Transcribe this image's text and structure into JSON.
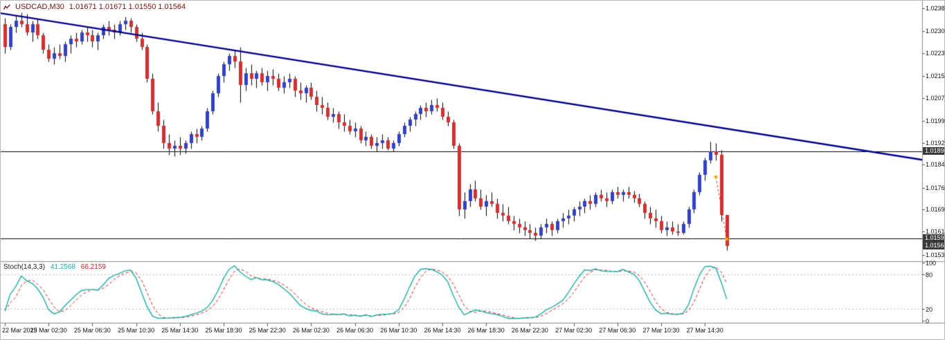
{
  "header": {
    "symbol": "USDCAD,M30",
    "ohlc": "1.01671 1.01671 1.01550 1.01564"
  },
  "indicator_label": {
    "name": "Stoch(14,3,3)",
    "k_value": "41.2568",
    "d_value": "66.2159"
  },
  "colors": {
    "background": "#ffffff",
    "bull": "#3342c2",
    "bear": "#d03232",
    "wick": "#000000",
    "trendline": "#00008b",
    "hline": "#000000",
    "separator": "#8a8a8a",
    "stoch_k": "#1fada6",
    "stoch_d": "#cc2222",
    "stoch_levels": "#a6c8a6",
    "axis_text": "#111111",
    "header_text": "#7b1010",
    "box_bg": "#3a3a3a",
    "box_text": "#ffffff",
    "trade_line": "#cc3322",
    "trade_marker": "#e6a817"
  },
  "axes": {
    "price_labels": [
      "1.02385",
      "1.02305",
      "1.02230",
      "1.02150",
      "1.02075",
      "1.01995",
      "1.01920",
      "1.01845",
      "1.01765",
      "1.01690",
      "1.01615",
      "1.01535"
    ],
    "stoch_labels": [
      "100",
      "80",
      "20",
      "0"
    ],
    "time_labels": [
      "22 Mar 2013",
      "25 Mar 02:30",
      "25 Mar 06:30",
      "25 Mar 10:30",
      "25 Mar 14:30",
      "25 Mar 18:30",
      "25 Mar 22:30",
      "26 Mar 02:30",
      "26 Mar 06:30",
      "26 Mar 10:30",
      "26 Mar 14:30",
      "26 Mar 18:30",
      "26 Mar 22:30",
      "27 Mar 02:30",
      "27 Mar 06:30",
      "27 Mar 10:30",
      "27 Mar 14:30"
    ]
  },
  "price_boxes": [
    {
      "name": "resistance-line-price",
      "text": "1.01890",
      "price": 1.0189
    },
    {
      "name": "support-line-price",
      "text": "1.01590",
      "price": 1.0159
    },
    {
      "name": "current-price",
      "text": "1.01564",
      "price": 1.01564
    }
  ],
  "chart_data": {
    "type": "candlestick",
    "symbol": "USDCAD",
    "timeframe": "M30",
    "title": "USDCAD,M30",
    "price_range": {
      "top": 1.0241,
      "bottom": 1.01515
    },
    "bars_per_time_label": 8,
    "current_bar": {
      "open": 1.01671,
      "high": 1.01671,
      "low": 1.0155,
      "close": 1.01564
    },
    "horizontal_lines": [
      {
        "price": 1.0189
      },
      {
        "price": 1.0159
      }
    ],
    "annotations": {
      "trendline": {
        "from": {
          "x_frac": 0.0,
          "price": 1.02367
        },
        "to": {
          "x_frac": 1.0,
          "price": 1.01862
        }
      },
      "trade_marker": {
        "from": {
          "bar": 130,
          "price": 1.01803
        },
        "to": {
          "bar": 132,
          "price": 1.01589
        }
      }
    },
    "stochastic": {
      "period": 14,
      "k_smooth": 3,
      "d_smooth": 3,
      "levels": [
        80,
        20
      ],
      "range": [
        0,
        100
      ],
      "last_k": 41.2568,
      "last_d": 66.2159
    },
    "candles_ohlc": [
      [
        1.0233,
        1.0235,
        1.0223,
        1.0225
      ],
      [
        1.0225,
        1.0233,
        1.0224,
        1.0232
      ],
      [
        1.0232,
        1.0236,
        1.023,
        1.0234
      ],
      [
        1.0234,
        1.0237,
        1.0232,
        1.0233
      ],
      [
        1.0233,
        1.02365,
        1.0229,
        1.023
      ],
      [
        1.023,
        1.0234,
        1.0227,
        1.0233
      ],
      [
        1.0233,
        1.02345,
        1.0228,
        1.0229
      ],
      [
        1.0229,
        1.023,
        1.0223,
        1.0224
      ],
      [
        1.0224,
        1.0226,
        1.022,
        1.0221
      ],
      [
        1.0221,
        1.0225,
        1.0219,
        1.0223
      ],
      [
        1.0223,
        1.0226,
        1.0221,
        1.0222
      ],
      [
        1.0222,
        1.0227,
        1.022,
        1.0226
      ],
      [
        1.0226,
        1.0229,
        1.0223,
        1.0228
      ],
      [
        1.0228,
        1.023,
        1.0225,
        1.0227
      ],
      [
        1.0227,
        1.0231,
        1.0226,
        1.023
      ],
      [
        1.023,
        1.0232,
        1.0227,
        1.0229
      ],
      [
        1.0229,
        1.0231,
        1.0225,
        1.0227
      ],
      [
        1.0227,
        1.023,
        1.0224,
        1.0229
      ],
      [
        1.0229,
        1.0233,
        1.0228,
        1.0232
      ],
      [
        1.0232,
        1.0234,
        1.0229,
        1.0231
      ],
      [
        1.0231,
        1.0233,
        1.0228,
        1.023
      ],
      [
        1.023,
        1.0234,
        1.0229,
        1.0233
      ],
      [
        1.0233,
        1.02355,
        1.0231,
        1.0234
      ],
      [
        1.0234,
        1.0235,
        1.023,
        1.0232
      ],
      [
        1.0232,
        1.0233,
        1.0227,
        1.0228
      ],
      [
        1.0228,
        1.023,
        1.0224,
        1.0225
      ],
      [
        1.0225,
        1.0226,
        1.0213,
        1.0214
      ],
      [
        1.0214,
        1.0216,
        1.0202,
        1.0203
      ],
      [
        1.0203,
        1.0206,
        1.0196,
        1.0198
      ],
      [
        1.0198,
        1.02,
        1.019,
        1.0192
      ],
      [
        1.0192,
        1.0195,
        1.0188,
        1.019
      ],
      [
        1.019,
        1.0193,
        1.01875,
        1.0191
      ],
      [
        1.0191,
        1.0194,
        1.0188,
        1.019
      ],
      [
        1.019,
        1.0193,
        1.01885,
        1.0192
      ],
      [
        1.0192,
        1.0196,
        1.019,
        1.0195
      ],
      [
        1.0195,
        1.0197,
        1.0192,
        1.0194
      ],
      [
        1.0194,
        1.0198,
        1.0193,
        1.0197
      ],
      [
        1.0197,
        1.0204,
        1.0196,
        1.0203
      ],
      [
        1.0203,
        1.021,
        1.0202,
        1.0209
      ],
      [
        1.0209,
        1.0216,
        1.0208,
        1.0215
      ],
      [
        1.0215,
        1.022,
        1.0213,
        1.0219
      ],
      [
        1.0219,
        1.0223,
        1.0217,
        1.0222
      ],
      [
        1.0222,
        1.0224,
        1.0218,
        1.022
      ],
      [
        1.022,
        1.0225,
        1.0206,
        1.0212
      ],
      [
        1.0212,
        1.0218,
        1.021,
        1.0216
      ],
      [
        1.0216,
        1.0219,
        1.0212,
        1.0214
      ],
      [
        1.0214,
        1.0217,
        1.0211,
        1.0216
      ],
      [
        1.0216,
        1.0218,
        1.0212,
        1.0213
      ],
      [
        1.0213,
        1.0217,
        1.021,
        1.0215
      ],
      [
        1.0215,
        1.02175,
        1.0212,
        1.0214
      ],
      [
        1.0214,
        1.0216,
        1.021,
        1.0211
      ],
      [
        1.0211,
        1.0215,
        1.0209,
        1.0213
      ],
      [
        1.0213,
        1.0216,
        1.0211,
        1.0214
      ],
      [
        1.0214,
        1.0215,
        1.0208,
        1.021
      ],
      [
        1.021,
        1.0213,
        1.0207,
        1.0209
      ],
      [
        1.0209,
        1.0212,
        1.0206,
        1.0211
      ],
      [
        1.0211,
        1.0213,
        1.0207,
        1.0208
      ],
      [
        1.0208,
        1.021,
        1.0203,
        1.0205
      ],
      [
        1.0205,
        1.0208,
        1.0202,
        1.0204
      ],
      [
        1.0204,
        1.0206,
        1.02,
        1.0201
      ],
      [
        1.0201,
        1.0204,
        1.0199,
        1.0202
      ],
      [
        1.0202,
        1.0203,
        1.0197,
        1.0199
      ],
      [
        1.0199,
        1.0202,
        1.0196,
        1.0198
      ],
      [
        1.0198,
        1.02,
        1.0195,
        1.0196
      ],
      [
        1.0196,
        1.0199,
        1.0194,
        1.0197
      ],
      [
        1.0197,
        1.0198,
        1.0192,
        1.0193
      ],
      [
        1.0193,
        1.0196,
        1.0191,
        1.0194
      ],
      [
        1.0194,
        1.0195,
        1.019,
        1.0191
      ],
      [
        1.0191,
        1.0194,
        1.0189,
        1.0192
      ],
      [
        1.0192,
        1.0195,
        1.019,
        1.0193
      ],
      [
        1.0193,
        1.0194,
        1.01895,
        1.019
      ],
      [
        1.019,
        1.0193,
        1.0189,
        1.0192
      ],
      [
        1.0192,
        1.0196,
        1.0191,
        1.0195
      ],
      [
        1.0195,
        1.0199,
        1.0194,
        1.0198
      ],
      [
        1.0198,
        1.0201,
        1.0196,
        1.02
      ],
      [
        1.02,
        1.0203,
        1.0198,
        1.0202
      ],
      [
        1.0202,
        1.0205,
        1.02,
        1.0204
      ],
      [
        1.0204,
        1.0206,
        1.0201,
        1.0203
      ],
      [
        1.0203,
        1.0207,
        1.0202,
        1.0205
      ],
      [
        1.0205,
        1.02075,
        1.0203,
        1.0204
      ],
      [
        1.0204,
        1.0206,
        1.02,
        1.0201
      ],
      [
        1.0201,
        1.0203,
        1.0198,
        1.0199
      ],
      [
        1.0199,
        1.02,
        1.019,
        1.0191
      ],
      [
        1.0191,
        1.0192,
        1.0167,
        1.0169
      ],
      [
        1.0169,
        1.0175,
        1.0166,
        1.0172
      ],
      [
        1.0172,
        1.0178,
        1.017,
        1.0176
      ],
      [
        1.0176,
        1.0179,
        1.0172,
        1.0173
      ],
      [
        1.0173,
        1.0176,
        1.0169,
        1.017
      ],
      [
        1.017,
        1.0174,
        1.0167,
        1.0172
      ],
      [
        1.0172,
        1.0175,
        1.017,
        1.0171
      ],
      [
        1.0171,
        1.0173,
        1.0166,
        1.0168
      ],
      [
        1.0168,
        1.0171,
        1.0165,
        1.0167
      ],
      [
        1.0167,
        1.017,
        1.0164,
        1.0165
      ],
      [
        1.0165,
        1.0167,
        1.0162,
        1.0164
      ],
      [
        1.0164,
        1.0166,
        1.0161,
        1.0163
      ],
      [
        1.0163,
        1.0165,
        1.016,
        1.0162
      ],
      [
        1.0162,
        1.0164,
        1.0159,
        1.0161
      ],
      [
        1.0161,
        1.0163,
        1.01585,
        1.016
      ],
      [
        1.016,
        1.0164,
        1.0159,
        1.0163
      ],
      [
        1.0163,
        1.0166,
        1.0161,
        1.0164
      ],
      [
        1.0164,
        1.0165,
        1.016,
        1.0162
      ],
      [
        1.0162,
        1.0166,
        1.0161,
        1.0165
      ],
      [
        1.0165,
        1.0168,
        1.0163,
        1.0166
      ],
      [
        1.0166,
        1.0169,
        1.0164,
        1.0167
      ],
      [
        1.0167,
        1.017,
        1.0165,
        1.0169
      ],
      [
        1.0169,
        1.0172,
        1.0167,
        1.017
      ],
      [
        1.017,
        1.0173,
        1.0168,
        1.0172
      ],
      [
        1.0172,
        1.0174,
        1.0169,
        1.0171
      ],
      [
        1.0171,
        1.0175,
        1.017,
        1.0174
      ],
      [
        1.0174,
        1.0176,
        1.0172,
        1.0173
      ],
      [
        1.0173,
        1.0175,
        1.017,
        1.0172
      ],
      [
        1.0172,
        1.0176,
        1.0171,
        1.0175
      ],
      [
        1.0175,
        1.0177,
        1.0173,
        1.0174
      ],
      [
        1.0174,
        1.0176,
        1.0172,
        1.0175
      ],
      [
        1.0175,
        1.0177,
        1.0173,
        1.0174
      ],
      [
        1.0174,
        1.01755,
        1.01715,
        1.0173
      ],
      [
        1.0173,
        1.01745,
        1.017,
        1.0171
      ],
      [
        1.0171,
        1.0172,
        1.0166,
        1.0168
      ],
      [
        1.0168,
        1.017,
        1.0164,
        1.0166
      ],
      [
        1.0166,
        1.0169,
        1.0163,
        1.0165
      ],
      [
        1.0165,
        1.0167,
        1.0161,
        1.0162
      ],
      [
        1.0162,
        1.0165,
        1.016,
        1.0163
      ],
      [
        1.0163,
        1.0165,
        1.01605,
        1.01615
      ],
      [
        1.01615,
        1.0164,
        1.016,
        1.0161
      ],
      [
        1.0161,
        1.0165,
        1.01605,
        1.0164
      ],
      [
        1.0164,
        1.017,
        1.0163,
        1.0169
      ],
      [
        1.0169,
        1.0176,
        1.0168,
        1.0175
      ],
      [
        1.0175,
        1.0182,
        1.0174,
        1.0181
      ],
      [
        1.0181,
        1.0187,
        1.0179,
        1.0186
      ],
      [
        1.0186,
        1.01925,
        1.0185,
        1.0189
      ],
      [
        1.0189,
        1.0192,
        1.0186,
        1.0188
      ],
      [
        1.0188,
        1.01895,
        1.0165,
        1.01671
      ],
      [
        1.01671,
        1.01671,
        1.0155,
        1.01564
      ]
    ]
  }
}
